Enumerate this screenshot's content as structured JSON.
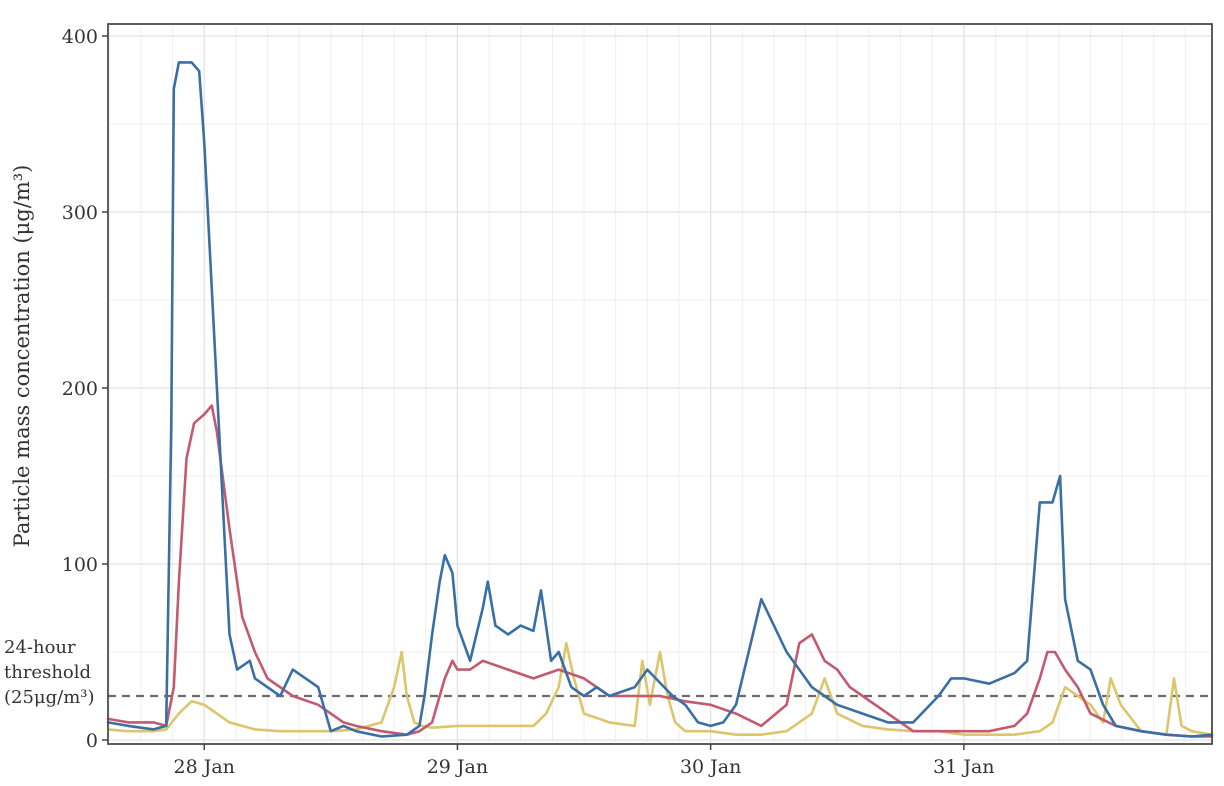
{
  "chart_data": {
    "type": "line",
    "ylabel": "Particle mass concentration (μg/m³)",
    "xlabel": "",
    "y_ticks": [
      "0",
      "100",
      "200",
      "300",
      "400"
    ],
    "x_ticks": [
      {
        "label": "28 Jan",
        "day": 28
      },
      {
        "label": "29 Jan",
        "day": 29
      },
      {
        "label": "30 Jan",
        "day": 30
      },
      {
        "label": "31 Jan",
        "day": 31
      }
    ],
    "xlim_days": [
      27.62,
      31.98
    ],
    "ylim": [
      0,
      400
    ],
    "grid": true,
    "threshold": {
      "value": 25,
      "label_lines": [
        "24-hour",
        "threshold",
        "(25μg/m³)"
      ]
    },
    "series": [
      {
        "color": "#3a6fa5",
        "x": [
          27.62,
          27.7,
          27.8,
          27.85,
          27.87,
          27.88,
          27.9,
          27.95,
          27.98,
          28.0,
          28.05,
          28.1,
          28.13,
          28.18,
          28.2,
          28.25,
          28.3,
          28.35,
          28.45,
          28.5,
          28.55,
          28.6,
          28.7,
          28.8,
          28.85,
          28.87,
          28.9,
          28.93,
          28.95,
          28.98,
          29.0,
          29.05,
          29.1,
          29.12,
          29.15,
          29.2,
          29.25,
          29.3,
          29.33,
          29.37,
          29.4,
          29.45,
          29.5,
          29.55,
          29.6,
          29.7,
          29.75,
          29.85,
          29.9,
          29.95,
          30.0,
          30.05,
          30.1,
          30.2,
          30.3,
          30.35,
          30.4,
          30.45,
          30.5,
          30.6,
          30.7,
          30.8,
          30.9,
          30.95,
          31.0,
          31.1,
          31.2,
          31.25,
          31.3,
          31.35,
          31.38,
          31.4,
          31.45,
          31.5,
          31.55,
          31.6,
          31.7,
          31.8,
          31.9,
          31.98
        ],
        "y": [
          10,
          8,
          6,
          8,
          180,
          370,
          385,
          385,
          380,
          340,
          200,
          60,
          40,
          45,
          35,
          30,
          25,
          40,
          30,
          5,
          8,
          5,
          2,
          3,
          8,
          25,
          60,
          90,
          105,
          95,
          65,
          45,
          75,
          90,
          65,
          60,
          65,
          62,
          85,
          45,
          50,
          30,
          25,
          30,
          25,
          30,
          40,
          25,
          20,
          10,
          8,
          10,
          20,
          80,
          50,
          40,
          30,
          25,
          20,
          15,
          10,
          10,
          25,
          35,
          35,
          32,
          38,
          45,
          135,
          135,
          150,
          80,
          45,
          40,
          20,
          8,
          5,
          3,
          2,
          3
        ]
      },
      {
        "color": "#c45a70",
        "x": [
          27.62,
          27.7,
          27.8,
          27.85,
          27.88,
          27.9,
          27.93,
          27.96,
          28.0,
          28.03,
          28.05,
          28.1,
          28.15,
          28.2,
          28.25,
          28.35,
          28.45,
          28.5,
          28.55,
          28.6,
          28.7,
          28.8,
          28.85,
          28.9,
          28.95,
          28.98,
          29.0,
          29.05,
          29.1,
          29.2,
          29.3,
          29.4,
          29.5,
          29.55,
          29.6,
          29.7,
          29.8,
          29.9,
          30.0,
          30.1,
          30.2,
          30.3,
          30.35,
          30.4,
          30.45,
          30.5,
          30.55,
          30.6,
          30.7,
          30.8,
          30.9,
          31.0,
          31.1,
          31.2,
          31.25,
          31.3,
          31.33,
          31.36,
          31.4,
          31.45,
          31.5,
          31.6,
          31.7,
          31.8,
          31.9,
          31.98
        ],
        "y": [
          12,
          10,
          10,
          8,
          30,
          90,
          160,
          180,
          185,
          190,
          175,
          120,
          70,
          50,
          35,
          25,
          20,
          15,
          10,
          8,
          5,
          3,
          5,
          10,
          35,
          45,
          40,
          40,
          45,
          40,
          35,
          40,
          35,
          30,
          25,
          25,
          25,
          22,
          20,
          15,
          8,
          20,
          55,
          60,
          45,
          40,
          30,
          25,
          15,
          5,
          5,
          5,
          5,
          8,
          15,
          35,
          50,
          50,
          40,
          30,
          15,
          8,
          5,
          3,
          2,
          2
        ]
      },
      {
        "color": "#dcc56c",
        "x": [
          27.62,
          27.7,
          27.8,
          27.85,
          27.9,
          27.95,
          28.0,
          28.05,
          28.1,
          28.2,
          28.3,
          28.4,
          28.5,
          28.6,
          28.7,
          28.75,
          28.78,
          28.8,
          28.83,
          28.86,
          28.9,
          29.0,
          29.1,
          29.2,
          29.3,
          29.35,
          29.4,
          29.43,
          29.46,
          29.5,
          29.6,
          29.7,
          29.73,
          29.76,
          29.8,
          29.83,
          29.86,
          29.9,
          30.0,
          30.1,
          30.2,
          30.3,
          30.4,
          30.45,
          30.5,
          30.6,
          30.7,
          30.8,
          30.9,
          31.0,
          31.1,
          31.2,
          31.3,
          31.35,
          31.4,
          31.45,
          31.5,
          31.55,
          31.58,
          31.62,
          31.7,
          31.8,
          31.83,
          31.86,
          31.9,
          31.98
        ],
        "y": [
          6,
          5,
          5,
          6,
          15,
          22,
          20,
          15,
          10,
          6,
          5,
          5,
          5,
          6,
          10,
          30,
          50,
          25,
          10,
          8,
          7,
          8,
          8,
          8,
          8,
          15,
          30,
          55,
          35,
          15,
          10,
          8,
          45,
          20,
          50,
          25,
          10,
          5,
          5,
          3,
          3,
          5,
          15,
          35,
          15,
          8,
          6,
          5,
          5,
          3,
          3,
          3,
          5,
          10,
          30,
          25,
          20,
          10,
          35,
          20,
          5,
          3,
          35,
          8,
          5,
          3
        ]
      }
    ]
  }
}
